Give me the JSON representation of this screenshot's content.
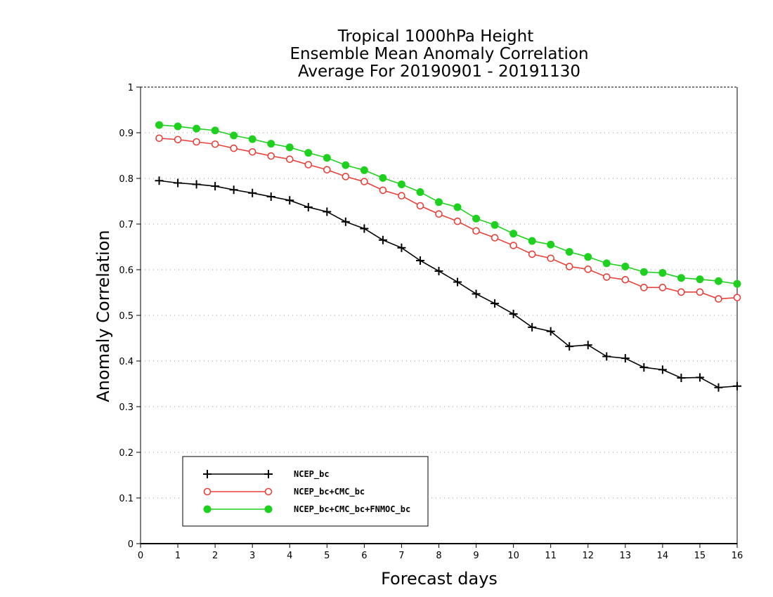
{
  "chart_data": {
    "type": "line",
    "title": "Tropical 1000hPa Height",
    "subtitle": "Ensemble Mean Anomaly Correlation",
    "subtitle2": "Average For 20190901 - 20191130",
    "xlabel": "Forecast days",
    "ylabel": "Anomaly Correlation",
    "xlim": [
      0,
      16
    ],
    "ylim": [
      0,
      1
    ],
    "x_ticks": [
      0,
      1,
      2,
      3,
      4,
      5,
      6,
      7,
      8,
      9,
      10,
      11,
      12,
      13,
      14,
      15,
      16
    ],
    "y_ticks": [
      0,
      0.1,
      0.2,
      0.3,
      0.4,
      0.5,
      0.6,
      0.7,
      0.8,
      0.9,
      1
    ],
    "grid": "horizontal dotted",
    "legend_position": "bottom-left",
    "x": [
      0.5,
      1,
      1.5,
      2,
      2.5,
      3,
      3.5,
      4,
      4.5,
      5,
      5.5,
      6,
      6.5,
      7,
      7.5,
      8,
      8.5,
      9,
      9.5,
      10,
      10.5,
      11,
      11.5,
      12,
      12.5,
      13,
      13.5,
      14,
      14.5,
      15,
      15.5,
      16
    ],
    "series": [
      {
        "name": "NCEP_bc",
        "color": "#000000",
        "marker": "plus",
        "values": [
          0.795,
          0.79,
          0.787,
          0.783,
          0.775,
          0.768,
          0.76,
          0.752,
          0.737,
          0.727,
          0.705,
          0.69,
          0.665,
          0.648,
          0.62,
          0.597,
          0.573,
          0.547,
          0.526,
          0.503,
          0.474,
          0.465,
          0.432,
          0.435,
          0.41,
          0.406,
          0.386,
          0.381,
          0.363,
          0.364,
          0.342,
          0.345
        ]
      },
      {
        "name": "NCEP_bc+CMC_bc",
        "color": "#e8413a",
        "marker": "open-circle",
        "values": [
          0.888,
          0.885,
          0.88,
          0.875,
          0.866,
          0.858,
          0.849,
          0.842,
          0.83,
          0.819,
          0.804,
          0.793,
          0.774,
          0.762,
          0.74,
          0.722,
          0.706,
          0.685,
          0.67,
          0.653,
          0.634,
          0.625,
          0.607,
          0.601,
          0.584,
          0.578,
          0.561,
          0.561,
          0.551,
          0.551,
          0.536,
          0.539
        ]
      },
      {
        "name": "NCEP_bc+CMC_bc+FNMOC_bc",
        "color": "#1fd11f",
        "marker": "filled-circle",
        "values": [
          0.917,
          0.914,
          0.909,
          0.905,
          0.894,
          0.886,
          0.876,
          0.868,
          0.856,
          0.845,
          0.829,
          0.818,
          0.801,
          0.787,
          0.77,
          0.748,
          0.737,
          0.712,
          0.698,
          0.679,
          0.663,
          0.655,
          0.639,
          0.628,
          0.614,
          0.607,
          0.595,
          0.593,
          0.582,
          0.579,
          0.575,
          0.569
        ]
      }
    ]
  }
}
